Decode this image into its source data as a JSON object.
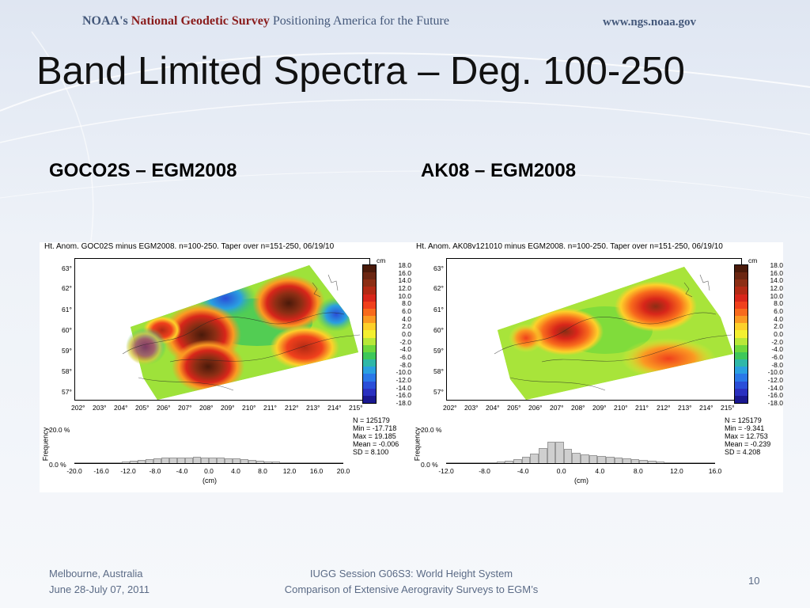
{
  "header": {
    "agency": "NOAA's",
    "survey": "National Geodetic Survey",
    "tagline": "Positioning America for the Future",
    "url": "www.ngs.noaa.gov"
  },
  "slide": {
    "title": "Band Limited Spectra – Deg. 100-250",
    "left_heading": "GOCO2S – EGM2008",
    "right_heading": "AK08 – EGM2008"
  },
  "panels": [
    {
      "title": "Ht. Anom. GOC02S minus EGM2008. n=100-250. Taper over n=151-250, 06/19/10",
      "stats": [
        "N = 125179",
        "Min = -17.718",
        "Max = 19.185",
        "Mean = -0.006",
        "SD = 8.100"
      ],
      "hist_xticks": [
        "-20.0",
        "-16.0",
        "-12.0",
        "-8.0",
        "-4.0",
        "0.0",
        "4.0",
        "8.0",
        "12.0",
        "16.0",
        "20.0"
      ]
    },
    {
      "title": "Ht. Anom. AK08v121010 minus EGM2008. n=100-250. Taper over n=151-250, 06/19/10",
      "stats": [
        "N = 125179",
        "Min = -9.341",
        "Max = 12.753",
        "Mean = -0.239",
        "SD = 4.208"
      ],
      "hist_xticks": [
        "-12.0",
        "-8.0",
        "-4.0",
        "0.0",
        "4.0",
        "8.0",
        "12.0",
        "16.0"
      ]
    }
  ],
  "map_axes": {
    "lat_ticks": [
      "63°",
      "62°",
      "61°",
      "60°",
      "59°",
      "58°",
      "57°"
    ],
    "lon_ticks": [
      "202°",
      "203°",
      "204°",
      "205°",
      "206°",
      "207°",
      "208°",
      "209°",
      "210°",
      "211°",
      "212°",
      "213°",
      "214°",
      "215°"
    ],
    "colorbar_unit": "cm",
    "colorbar_labels": [
      "18.0",
      "16.0",
      "14.0",
      "12.0",
      "10.0",
      "8.0",
      "6.0",
      "4.0",
      "2.0",
      "0.0",
      "-2.0",
      "-4.0",
      "-6.0",
      "-8.0",
      "-10.0",
      "-12.0",
      "-14.0",
      "-16.0",
      "-18.0"
    ],
    "colorbar_colors": [
      "#4a1a0a",
      "#6b2612",
      "#8c2e14",
      "#b22a14",
      "#d8261a",
      "#f0401c",
      "#f86a1c",
      "#fb9a22",
      "#fdd02a",
      "#f4f030",
      "#b8e838",
      "#6fd83c",
      "#3ec85a",
      "#2fb8a8",
      "#2aa0e0",
      "#2a78e8",
      "#2a4ed8",
      "#2a30c0",
      "#1a1890"
    ]
  },
  "histogram": {
    "ylabel": "Frequency",
    "yticks": [
      "20.0 %",
      "0.0 %"
    ],
    "xlabel": "(cm)"
  },
  "footer": {
    "location": "Melbourne, Australia",
    "dates": "June 28-July 07, 2011",
    "session_line1": "IUGG Session G06S3: World Height System",
    "session_line2": "Comparison of Extensive Aerogravity Surveys to EGM’s",
    "page_number": "10"
  }
}
